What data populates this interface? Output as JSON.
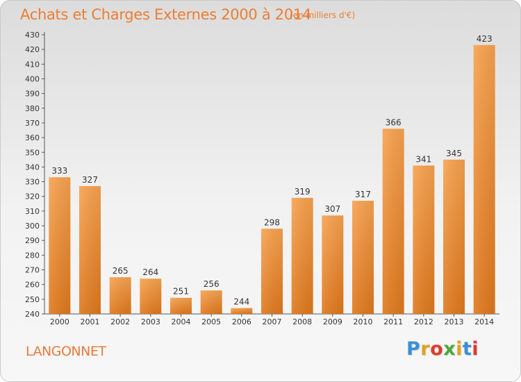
{
  "title": "Achats et Charges Externes 2000 à 2014",
  "subtitle": "(en milliers d'€)",
  "town": "LANGONNET",
  "logo": {
    "letters": [
      "P",
      "r",
      "o",
      "x",
      "i",
      "t",
      "i"
    ],
    "colors": [
      "#3a8fd6",
      "#e3a21a",
      "#e23a2d",
      "#4aa83a",
      "#e3a21a",
      "#3a8fd6",
      "#e23a2d"
    ]
  },
  "colors": {
    "bar_light": "#f7a14e",
    "bar_dark": "#e07a1f",
    "accent": "#ed7d31"
  },
  "chart_data": {
    "type": "bar",
    "title": "Achats et Charges Externes 2000 à 2014",
    "subtitle": "(en milliers d'€)",
    "categories": [
      "2000",
      "2001",
      "2002",
      "2003",
      "2004",
      "2005",
      "2006",
      "2007",
      "2008",
      "2009",
      "2010",
      "2011",
      "2012",
      "2013",
      "2014"
    ],
    "values": [
      333,
      327,
      265,
      264,
      251,
      256,
      244,
      298,
      319,
      307,
      317,
      366,
      341,
      345,
      423
    ],
    "ylim": [
      240,
      430
    ],
    "yticks": [
      240,
      250,
      260,
      270,
      280,
      290,
      300,
      310,
      320,
      330,
      340,
      350,
      360,
      370,
      380,
      390,
      400,
      410,
      420,
      430
    ],
    "grid": false,
    "xlabel": "",
    "ylabel": ""
  }
}
